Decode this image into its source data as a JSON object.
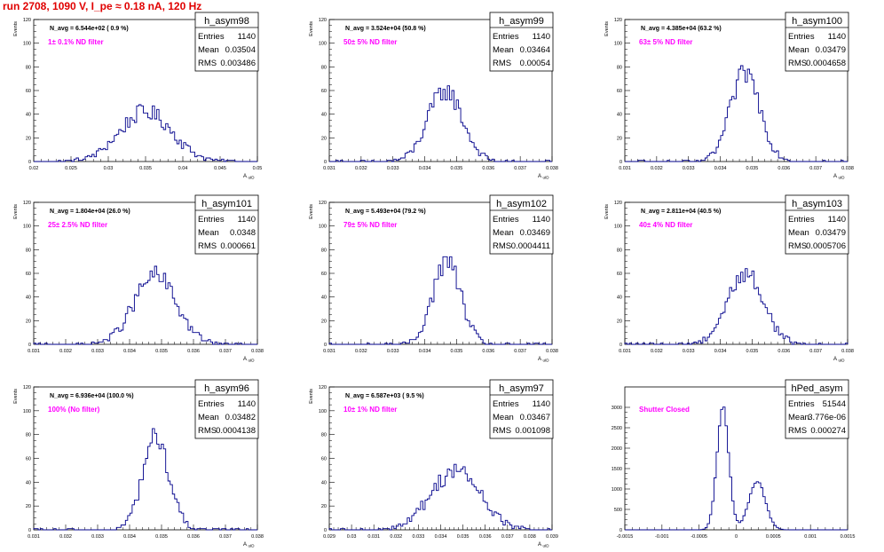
{
  "page_title": "run 2708,  1090 V, I_pe ≈ 0.18 nA, 120 Hz",
  "colors": {
    "title": "#e00000",
    "note": "#ff00ff",
    "hist": "#00008b",
    "axis": "#000000"
  },
  "chart_data": [
    {
      "type": "histogram",
      "name": "h_asym98",
      "stats": {
        "Entries": "1140",
        "Mean": "0.03504",
        "RMS": "0.003486"
      },
      "navg_text": "N_avg = 6.544e+02 ( 0.9 %)",
      "note": "1± 0.1% ND filter",
      "xlabel": "A_uID",
      "ylabel": "Events",
      "xlim": [
        0.02,
        0.05
      ],
      "ylim": [
        0,
        120
      ],
      "xticks": [
        "0.02",
        "0.025",
        "0.03",
        "0.035",
        "0.04",
        "0.045",
        "0.05"
      ],
      "yticks": [
        "0",
        "20",
        "40",
        "60",
        "80",
        "100",
        "120"
      ],
      "mean": 0.03504,
      "rms": 0.003486,
      "peak": 42,
      "entries": 1140
    },
    {
      "type": "histogram",
      "name": "h_asym99",
      "stats": {
        "Entries": "1140",
        "Mean": "0.03464",
        "RMS": "0.00054"
      },
      "navg_text": "N_avg = 3.524e+04 (50.8 %)",
      "note": "50± 5% ND filter",
      "xlabel": "A_uID",
      "ylabel": "Events",
      "xlim": [
        0.031,
        0.038
      ],
      "ylim": [
        0,
        120
      ],
      "xticks": [
        "0.031",
        "0.032",
        "0.033",
        "0.034",
        "0.035",
        "0.036",
        "0.037",
        "0.038"
      ],
      "yticks": [
        "0",
        "20",
        "40",
        "60",
        "80",
        "100",
        "120"
      ],
      "mean": 0.03464,
      "rms": 0.00054,
      "peak": 60,
      "entries": 1140
    },
    {
      "type": "histogram",
      "name": "h_asym100",
      "stats": {
        "Entries": "1140",
        "Mean": "0.03479",
        "RMS": "0.0004658"
      },
      "navg_text": "N_avg = 4.385e+04 (63.2 %)",
      "note": "63± 5% ND filter",
      "xlabel": "A_uID",
      "ylabel": "Events",
      "xlim": [
        0.031,
        0.038
      ],
      "ylim": [
        0,
        120
      ],
      "xticks": [
        "0.031",
        "0.032",
        "0.033",
        "0.034",
        "0.035",
        "0.036",
        "0.037",
        "0.038"
      ],
      "yticks": [
        "0",
        "20",
        "40",
        "60",
        "80",
        "100",
        "120"
      ],
      "mean": 0.03479,
      "rms": 0.0004658,
      "peak": 75,
      "entries": 1140
    },
    {
      "type": "histogram",
      "name": "h_asym101",
      "stats": {
        "Entries": "1140",
        "Mean": "0.0348",
        "RMS": "0.000661"
      },
      "navg_text": "N_avg = 1.804e+04 (26.0 %)",
      "note": "25± 2.5% ND filter",
      "xlabel": "A_uID",
      "ylabel": "Events",
      "xlim": [
        0.031,
        0.038
      ],
      "ylim": [
        0,
        120
      ],
      "xticks": [
        "0.031",
        "0.032",
        "0.033",
        "0.034",
        "0.035",
        "0.036",
        "0.037",
        "0.038"
      ],
      "yticks": [
        "0",
        "20",
        "40",
        "60",
        "80",
        "100",
        "120"
      ],
      "mean": 0.0348,
      "rms": 0.000661,
      "peak": 58,
      "entries": 1140
    },
    {
      "type": "histogram",
      "name": "h_asym102",
      "stats": {
        "Entries": "1140",
        "Mean": "0.03469",
        "RMS": "0.0004411"
      },
      "navg_text": "N_avg = 5.493e+04 (79.2 %)",
      "note": "79± 5% ND filter",
      "xlabel": "A_uID",
      "ylabel": "Events",
      "xlim": [
        0.031,
        0.038
      ],
      "ylim": [
        0,
        120
      ],
      "xticks": [
        "0.031",
        "0.032",
        "0.033",
        "0.034",
        "0.035",
        "0.036",
        "0.037",
        "0.038"
      ],
      "yticks": [
        "0",
        "20",
        "40",
        "60",
        "80",
        "100",
        "120"
      ],
      "mean": 0.03469,
      "rms": 0.0004411,
      "peak": 70,
      "entries": 1140
    },
    {
      "type": "histogram",
      "name": "h_asym103",
      "stats": {
        "Entries": "1140",
        "Mean": "0.03479",
        "RMS": "0.0005706"
      },
      "navg_text": "N_avg = 2.811e+04 (40.5 %)",
      "note": "40± 4% ND filter",
      "xlabel": "A_uID",
      "ylabel": "Events",
      "xlim": [
        0.031,
        0.038
      ],
      "ylim": [
        0,
        120
      ],
      "xticks": [
        "0.031",
        "0.032",
        "0.033",
        "0.034",
        "0.035",
        "0.036",
        "0.037",
        "0.038"
      ],
      "yticks": [
        "0",
        "20",
        "40",
        "60",
        "80",
        "100",
        "120"
      ],
      "mean": 0.03479,
      "rms": 0.0005706,
      "peak": 60,
      "entries": 1140
    },
    {
      "type": "histogram",
      "name": "h_asym96",
      "stats": {
        "Entries": "1140",
        "Mean": "0.03482",
        "RMS": "0.0004138"
      },
      "navg_text": "N_avg = 6.936e+04 (100.0 %)",
      "note": "100% (No filter)",
      "xlabel": "A_uID",
      "ylabel": "Events",
      "xlim": [
        0.031,
        0.038
      ],
      "ylim": [
        0,
        120
      ],
      "xticks": [
        "0.031",
        "0.032",
        "0.033",
        "0.034",
        "0.035",
        "0.036",
        "0.037",
        "0.038"
      ],
      "yticks": [
        "0",
        "20",
        "40",
        "60",
        "80",
        "100",
        "120"
      ],
      "mean": 0.03482,
      "rms": 0.0004138,
      "peak": 78,
      "entries": 1140
    },
    {
      "type": "histogram",
      "name": "h_asym97",
      "stats": {
        "Entries": "1140",
        "Mean": "0.03467",
        "RMS": "0.001098"
      },
      "navg_text": "N_avg = 6.587e+03 ( 9.5 %)",
      "note": "10± 1% ND filter",
      "xlabel": "A_uID",
      "ylabel": "Events",
      "xlim": [
        0.029,
        0.039
      ],
      "ylim": [
        0,
        120
      ],
      "xticks": [
        "0.029",
        "0.03",
        "0.031",
        "0.032",
        "0.033",
        "0.034",
        "0.035",
        "0.036",
        "0.037",
        "0.038",
        "0.039"
      ],
      "yticks": [
        "0",
        "20",
        "40",
        "60",
        "80",
        "100",
        "120"
      ],
      "mean": 0.03467,
      "rms": 0.001098,
      "peak": 50,
      "entries": 1140
    },
    {
      "type": "histogram",
      "name": "hPed_asym",
      "stats": {
        "Entries": "51544",
        "Mean": "3.776e-06",
        "RMS": "0.000274"
      },
      "navg_text": "",
      "note": "Shutter Closed",
      "xlabel": "",
      "ylabel": "",
      "xlim": [
        -0.0015,
        0.0015
      ],
      "ylim": [
        0,
        3500
      ],
      "xticks": [
        "-0.0015",
        "-0.001",
        "-0.0005",
        "0",
        "0.0005",
        "0.001",
        "0.0015"
      ],
      "yticks": [
        "0",
        "500",
        "1000",
        "1500",
        "2000",
        "2500",
        "3000"
      ],
      "components": [
        {
          "mean": -0.00018,
          "sigma": 8e-05,
          "peak": 3000
        },
        {
          "mean": 0.00028,
          "sigma": 0.00011,
          "peak": 1200
        }
      ],
      "entries": 51544
    }
  ]
}
